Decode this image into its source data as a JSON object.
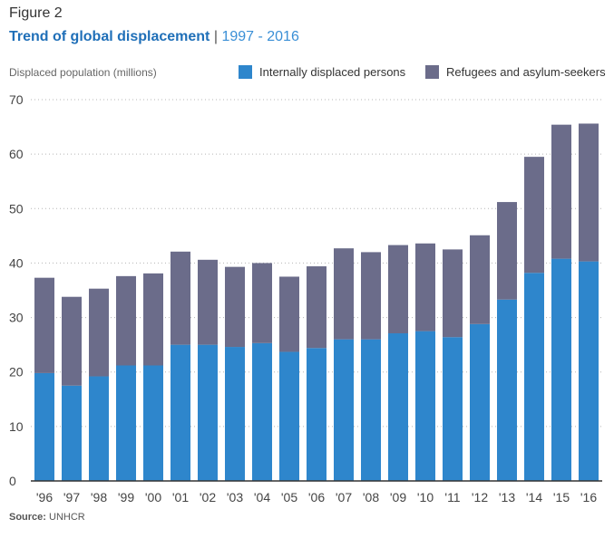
{
  "figure": {
    "label": "Figure 2",
    "title": "Trend of global displacement",
    "separator": "|",
    "subtitle": "1997 - 2016",
    "source_label": "Source:",
    "source_value": "UNHCR"
  },
  "chart_data": {
    "type": "bar",
    "stacked": true,
    "title": "Trend of global displacement",
    "subtitle": "1997 - 2016",
    "xlabel": "",
    "ylabel": "Displaced population (millions)",
    "ylim": [
      0,
      70
    ],
    "yticks": [
      0,
      10,
      20,
      30,
      40,
      50,
      60,
      70
    ],
    "grid": "horizontal-dotted",
    "legend_position": "top-right",
    "categories": [
      "'96",
      "'97",
      "'98",
      "'99",
      "'00",
      "'01",
      "'02",
      "'03",
      "'04",
      "'05",
      "'06",
      "'07",
      "'08",
      "'09",
      "'10",
      "'11",
      "'12",
      "'13",
      "'14",
      "'15",
      "'16"
    ],
    "series": [
      {
        "name": "Internally displaced persons",
        "color": "#2e86cc",
        "values": [
          19.8,
          17.5,
          19.2,
          21.2,
          21.2,
          25.0,
          25.0,
          24.6,
          25.3,
          23.7,
          24.4,
          26.0,
          26.0,
          27.1,
          27.5,
          26.4,
          28.8,
          33.3,
          38.2,
          40.8,
          40.3
        ]
      },
      {
        "name": "Refugees and asylum-seekers",
        "color": "#6b6c8a",
        "values": [
          17.5,
          16.3,
          16.1,
          16.4,
          16.9,
          17.1,
          15.6,
          14.7,
          14.7,
          13.8,
          15.0,
          16.7,
          16.0,
          16.2,
          16.1,
          16.1,
          16.3,
          17.9,
          21.3,
          24.6,
          25.3
        ]
      }
    ]
  }
}
